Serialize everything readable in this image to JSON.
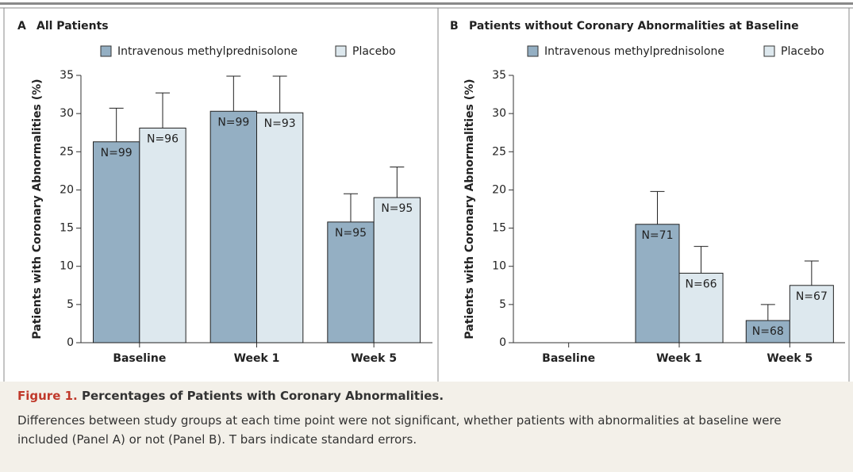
{
  "chart_data": [
    {
      "type": "bar",
      "panel": "A",
      "title": "All Patients",
      "ylabel": "Patients with Coronary Abnormalities (%)",
      "categories": [
        "Baseline",
        "Week 1",
        "Week 5"
      ],
      "series": [
        {
          "name": "Intravenous methylprednisolone",
          "color": "#94afc3",
          "values": [
            26.3,
            30.3,
            15.8
          ],
          "errors": [
            4.4,
            4.6,
            3.7
          ],
          "n_labels": [
            "N=99",
            "N=99",
            "N=95"
          ]
        },
        {
          "name": "Placebo",
          "color": "#dde8ee",
          "values": [
            28.1,
            30.1,
            19.0
          ],
          "errors": [
            4.6,
            4.8,
            4.0
          ],
          "n_labels": [
            "N=96",
            "N=93",
            "N=95"
          ]
        }
      ],
      "ylim": [
        0,
        35
      ],
      "yticks": [
        0,
        5,
        10,
        15,
        20,
        25,
        30,
        35
      ],
      "grid": false
    },
    {
      "type": "bar",
      "panel": "B",
      "title": "Patients without Coronary Abnormalities at Baseline",
      "ylabel": "Patients with Coronary Abnormalities (%)",
      "categories": [
        "Baseline",
        "Week 1",
        "Week 5"
      ],
      "series": [
        {
          "name": "Intravenous methylprednisolone",
          "color": "#94afc3",
          "values": [
            null,
            15.5,
            2.9
          ],
          "errors": [
            null,
            4.3,
            2.1
          ],
          "n_labels": [
            null,
            "N=71",
            "N=68"
          ]
        },
        {
          "name": "Placebo",
          "color": "#dde8ee",
          "values": [
            null,
            9.1,
            7.5
          ],
          "errors": [
            null,
            3.5,
            3.2
          ],
          "n_labels": [
            null,
            "N=66",
            "N=67"
          ]
        }
      ],
      "ylim": [
        0,
        35
      ],
      "yticks": [
        0,
        5,
        10,
        15,
        20,
        25,
        30,
        35
      ],
      "grid": false
    }
  ],
  "caption": {
    "label": "Figure 1.",
    "title": "Percentages of Patients with Coronary Abnormalities.",
    "text": "Differences between study groups at each time point were not significant, whether patients with abnormalities at baseline were included (Panel A) or not (Panel B). T bars indicate standard errors."
  }
}
